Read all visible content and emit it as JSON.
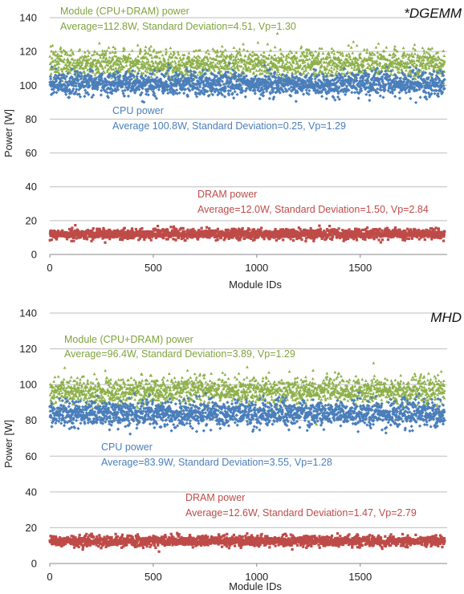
{
  "chart_data": [
    {
      "type": "scatter",
      "title": "*DGEMM",
      "xlabel": "Module IDs",
      "ylabel": "Power [W]",
      "xlim": [
        0,
        1920
      ],
      "ylim": [
        0,
        140
      ],
      "xticks": [
        0,
        500,
        1000,
        1500
      ],
      "yticks": [
        0,
        20,
        40,
        60,
        80,
        100,
        120,
        140
      ],
      "grid": "horizontal",
      "series": [
        {
          "name": "Module (CPU+DRAM) power",
          "color": "#8db04a",
          "marker": "triangle",
          "n": 1900,
          "mean": 112.8,
          "std": 4.51,
          "vp": 1.3,
          "annotation": [
            "Module (CPU+DRAM) power",
            "Average=112.8W, Standard Deviation=4.51, Vp=1.30"
          ]
        },
        {
          "name": "CPU power",
          "color": "#4a7ebb",
          "marker": "diamond",
          "n": 1900,
          "mean": 100.8,
          "std": 0.25,
          "vp": 1.29,
          "annotation": [
            "CPU power",
            "Average 100.8W, Standard Deviation=0.25, Vp=1.29"
          ]
        },
        {
          "name": "DRAM power",
          "color": "#be4b48",
          "marker": "square",
          "n": 1900,
          "mean": 12.0,
          "std": 1.5,
          "vp": 2.84,
          "annotation": [
            "DRAM power",
            "Average=12.0W, Standard Deviation=1.50, Vp=2.84"
          ]
        }
      ]
    },
    {
      "type": "scatter",
      "title": "MHD",
      "xlabel": "Module IDs",
      "ylabel": "Power [W]",
      "xlim": [
        0,
        1920
      ],
      "ylim": [
        0,
        140
      ],
      "xticks": [
        0,
        500,
        1000,
        1500
      ],
      "yticks": [
        0,
        20,
        40,
        60,
        80,
        100,
        120,
        140
      ],
      "grid": "horizontal",
      "series": [
        {
          "name": "Module (CPU+DRAM) power",
          "color": "#8db04a",
          "marker": "triangle",
          "n": 1900,
          "mean": 96.4,
          "std": 3.89,
          "vp": 1.29,
          "annotation": [
            "Module (CPU+DRAM) power",
            "Average=96.4W, Standard Deviation=3.89, Vp=1.29"
          ]
        },
        {
          "name": "CPU power",
          "color": "#4a7ebb",
          "marker": "diamond",
          "n": 1900,
          "mean": 83.9,
          "std": 3.55,
          "vp": 1.28,
          "annotation": [
            "CPU power",
            "Average=83.9W, Standard Deviation=3.55, Vp=1.28"
          ]
        },
        {
          "name": "DRAM power",
          "color": "#be4b48",
          "marker": "square",
          "n": 1900,
          "mean": 12.6,
          "std": 1.47,
          "vp": 2.79,
          "annotation": [
            "DRAM power",
            "Average=12.6W, Standard Deviation=1.47, Vp=2.79"
          ]
        }
      ]
    }
  ]
}
